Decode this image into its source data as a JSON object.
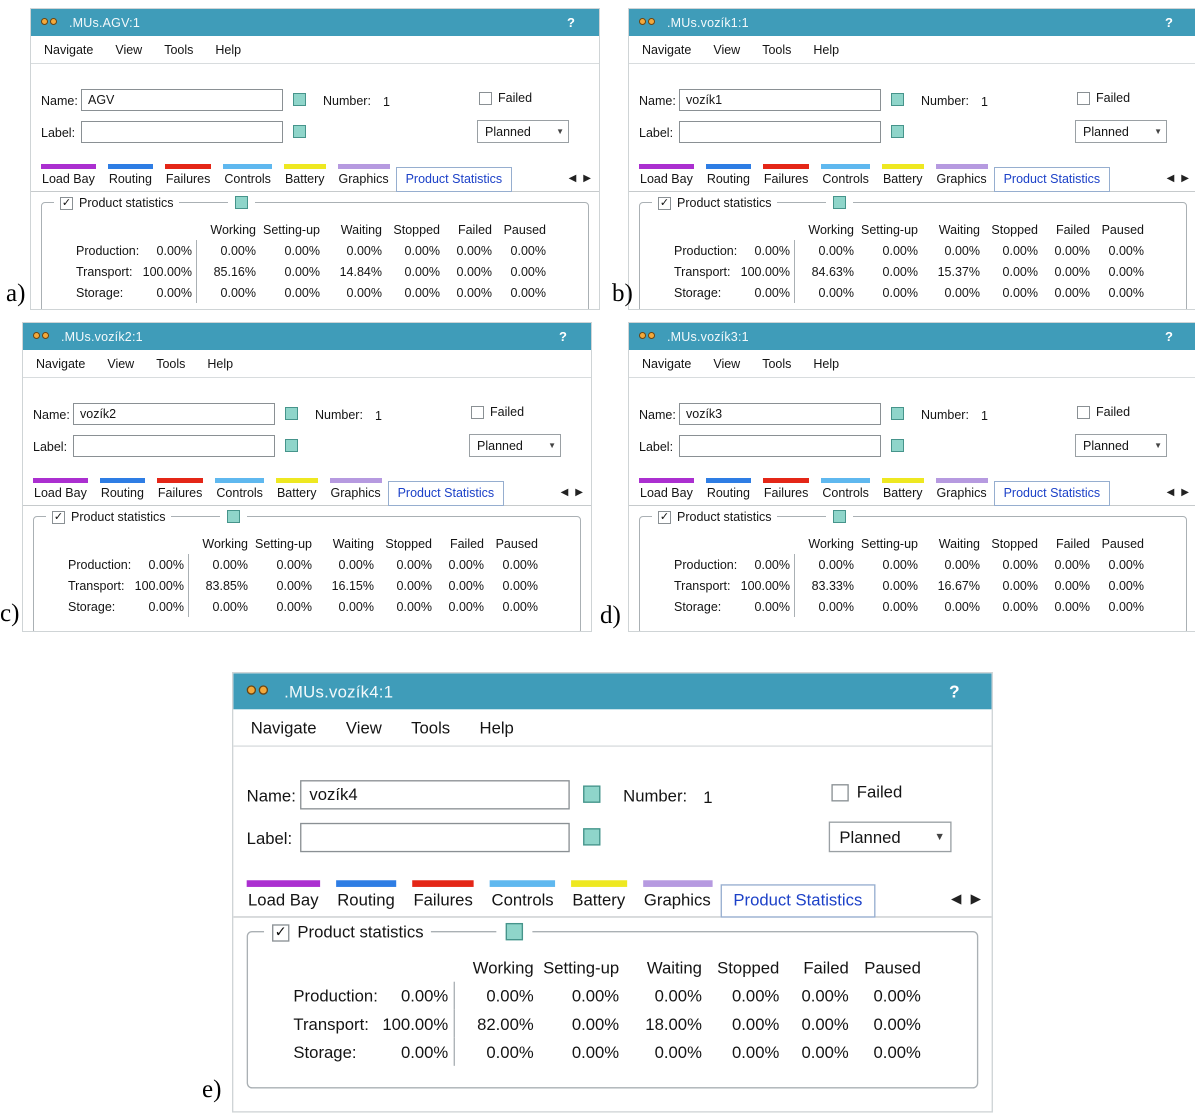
{
  "labels": {
    "help": "?",
    "name": "Name:",
    "label": "Label:",
    "number": "Number:",
    "failed": "Failed",
    "planned": "Planned",
    "group": "Product statistics"
  },
  "icons": {
    "check": "✓",
    "chevron_down": "▼",
    "scroll_left": "◀",
    "scroll_right": "▶"
  },
  "menu": [
    "Navigate",
    "View",
    "Tools",
    "Help"
  ],
  "tabs": [
    "Load Bay",
    "Routing",
    "Failures",
    "Controls",
    "Battery",
    "Graphics",
    "Product Statistics"
  ],
  "stats_headers": [
    "Working",
    "Setting-up",
    "Waiting",
    "Stopped",
    "Failed",
    "Paused"
  ],
  "colors": {
    "titlebar": "#3f9cb9",
    "active_tab_text": "#1c41c8",
    "inherit_square": "#8fd5ca",
    "tab_bars": [
      "#ab2fd0",
      "#2e7de4",
      "#e42617",
      "#5fb8ef",
      "#eee821",
      "#b69ae0"
    ]
  },
  "windows": [
    {
      "letter": "a)",
      "title": ".MUs.AGV:1",
      "fields": {
        "name_value": "AGV",
        "label_value": "",
        "number_value": "1"
      },
      "stats": {
        "rows": [
          {
            "label": "Production:",
            "total": "0.00%",
            "values": [
              "0.00%",
              "0.00%",
              "0.00%",
              "0.00%",
              "0.00%",
              "0.00%"
            ]
          },
          {
            "label": "Transport:",
            "total": "100.00%",
            "values": [
              "85.16%",
              "0.00%",
              "14.84%",
              "0.00%",
              "0.00%",
              "0.00%"
            ]
          },
          {
            "label": "Storage:",
            "total": "0.00%",
            "values": [
              "0.00%",
              "0.00%",
              "0.00%",
              "0.00%",
              "0.00%",
              "0.00%"
            ]
          }
        ]
      }
    },
    {
      "letter": "b)",
      "title": ".MUs.vozík1:1",
      "fields": {
        "name_value": "vozík1",
        "label_value": "",
        "number_value": "1"
      },
      "stats": {
        "rows": [
          {
            "label": "Production:",
            "total": "0.00%",
            "values": [
              "0.00%",
              "0.00%",
              "0.00%",
              "0.00%",
              "0.00%",
              "0.00%"
            ]
          },
          {
            "label": "Transport:",
            "total": "100.00%",
            "values": [
              "84.63%",
              "0.00%",
              "15.37%",
              "0.00%",
              "0.00%",
              "0.00%"
            ]
          },
          {
            "label": "Storage:",
            "total": "0.00%",
            "values": [
              "0.00%",
              "0.00%",
              "0.00%",
              "0.00%",
              "0.00%",
              "0.00%"
            ]
          }
        ]
      }
    },
    {
      "letter": "c)",
      "title": ".MUs.vozík2:1",
      "fields": {
        "name_value": "vozík2",
        "label_value": "",
        "number_value": "1"
      },
      "stats": {
        "rows": [
          {
            "label": "Production:",
            "total": "0.00%",
            "values": [
              "0.00%",
              "0.00%",
              "0.00%",
              "0.00%",
              "0.00%",
              "0.00%"
            ]
          },
          {
            "label": "Transport:",
            "total": "100.00%",
            "values": [
              "83.85%",
              "0.00%",
              "16.15%",
              "0.00%",
              "0.00%",
              "0.00%"
            ]
          },
          {
            "label": "Storage:",
            "total": "0.00%",
            "values": [
              "0.00%",
              "0.00%",
              "0.00%",
              "0.00%",
              "0.00%",
              "0.00%"
            ]
          }
        ]
      }
    },
    {
      "letter": "d)",
      "title": ".MUs.vozík3:1",
      "fields": {
        "name_value": "vozík3",
        "label_value": "",
        "number_value": "1"
      },
      "stats": {
        "rows": [
          {
            "label": "Production:",
            "total": "0.00%",
            "values": [
              "0.00%",
              "0.00%",
              "0.00%",
              "0.00%",
              "0.00%",
              "0.00%"
            ]
          },
          {
            "label": "Transport:",
            "total": "100.00%",
            "values": [
              "83.33%",
              "0.00%",
              "16.67%",
              "0.00%",
              "0.00%",
              "0.00%"
            ]
          },
          {
            "label": "Storage:",
            "total": "0.00%",
            "values": [
              "0.00%",
              "0.00%",
              "0.00%",
              "0.00%",
              "0.00%",
              "0.00%"
            ]
          }
        ]
      }
    },
    {
      "letter": "e)",
      "title": ".MUs.vozík4:1",
      "fields": {
        "name_value": "vozík4",
        "label_value": "",
        "number_value": "1"
      },
      "stats": {
        "rows": [
          {
            "label": "Production:",
            "total": "0.00%",
            "values": [
              "0.00%",
              "0.00%",
              "0.00%",
              "0.00%",
              "0.00%",
              "0.00%"
            ]
          },
          {
            "label": "Transport:",
            "total": "100.00%",
            "values": [
              "82.00%",
              "0.00%",
              "18.00%",
              "0.00%",
              "0.00%",
              "0.00%"
            ]
          },
          {
            "label": "Storage:",
            "total": "0.00%",
            "values": [
              "0.00%",
              "0.00%",
              "0.00%",
              "0.00%",
              "0.00%",
              "0.00%"
            ]
          }
        ]
      }
    }
  ]
}
